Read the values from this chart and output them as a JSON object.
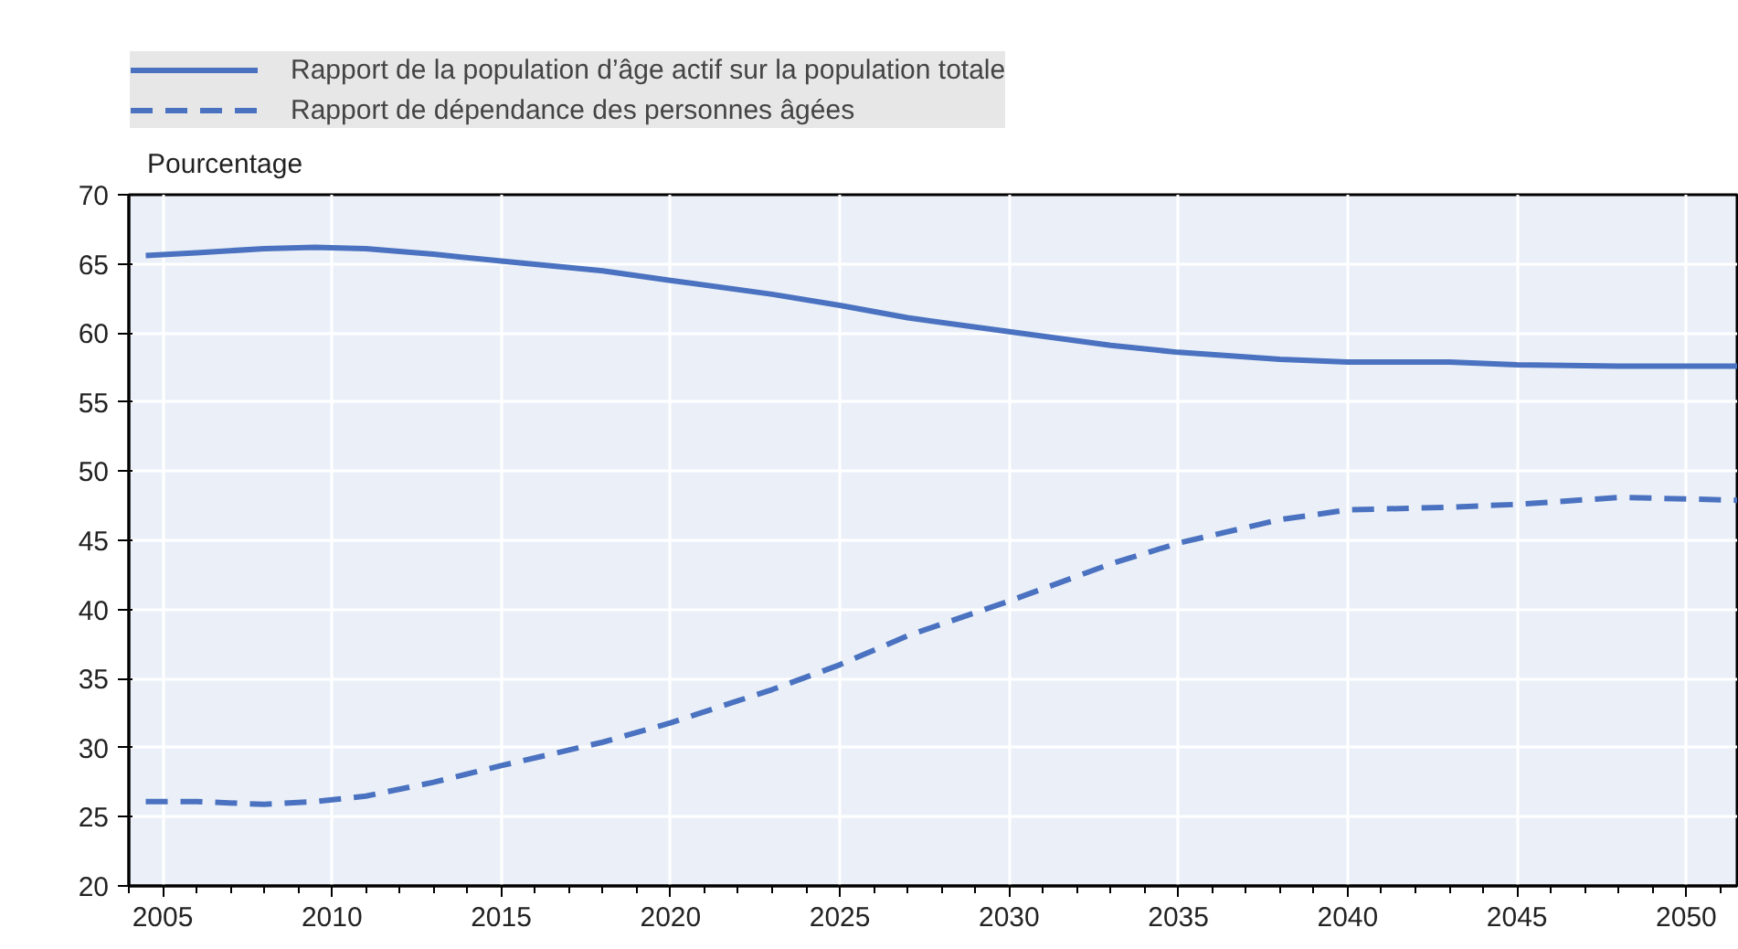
{
  "chart_data": {
    "type": "line",
    "ylabel": "Pourcentage",
    "x": [
      2004.5,
      2006,
      2008,
      2009.5,
      2011,
      2013,
      2015,
      2018,
      2020,
      2023,
      2025,
      2027,
      2030,
      2033,
      2035,
      2038,
      2040,
      2043,
      2045,
      2048,
      2050,
      2051.5
    ],
    "series": [
      {
        "name": "Rapport de la population d’âge actif sur la population totale",
        "color": "#4a72c0",
        "line_style": "solid",
        "values": [
          65.6,
          65.8,
          66.1,
          66.2,
          66.1,
          65.7,
          65.2,
          64.5,
          63.8,
          62.8,
          62.0,
          61.1,
          60.1,
          59.1,
          58.6,
          58.1,
          57.9,
          57.9,
          57.7,
          57.6,
          57.6,
          57.6
        ]
      },
      {
        "name": "Rapport de dépendance des personnes âgées",
        "color": "#4a72c0",
        "line_style": "dashed",
        "values": [
          26.1,
          26.1,
          25.9,
          26.1,
          26.5,
          27.5,
          28.7,
          30.4,
          31.8,
          34.2,
          36.0,
          38.1,
          40.6,
          43.3,
          44.8,
          46.5,
          47.2,
          47.4,
          47.6,
          48.1,
          48.0,
          47.9
        ]
      }
    ],
    "xlim": [
      2004,
      2051.5
    ],
    "xticks": [
      2005,
      2010,
      2015,
      2020,
      2025,
      2030,
      2035,
      2040,
      2045,
      2050
    ],
    "ylim": [
      20,
      70
    ],
    "yticks": [
      20,
      25,
      30,
      35,
      40,
      45,
      50,
      55,
      60,
      65,
      70
    ],
    "grid": true,
    "legend": "top"
  }
}
